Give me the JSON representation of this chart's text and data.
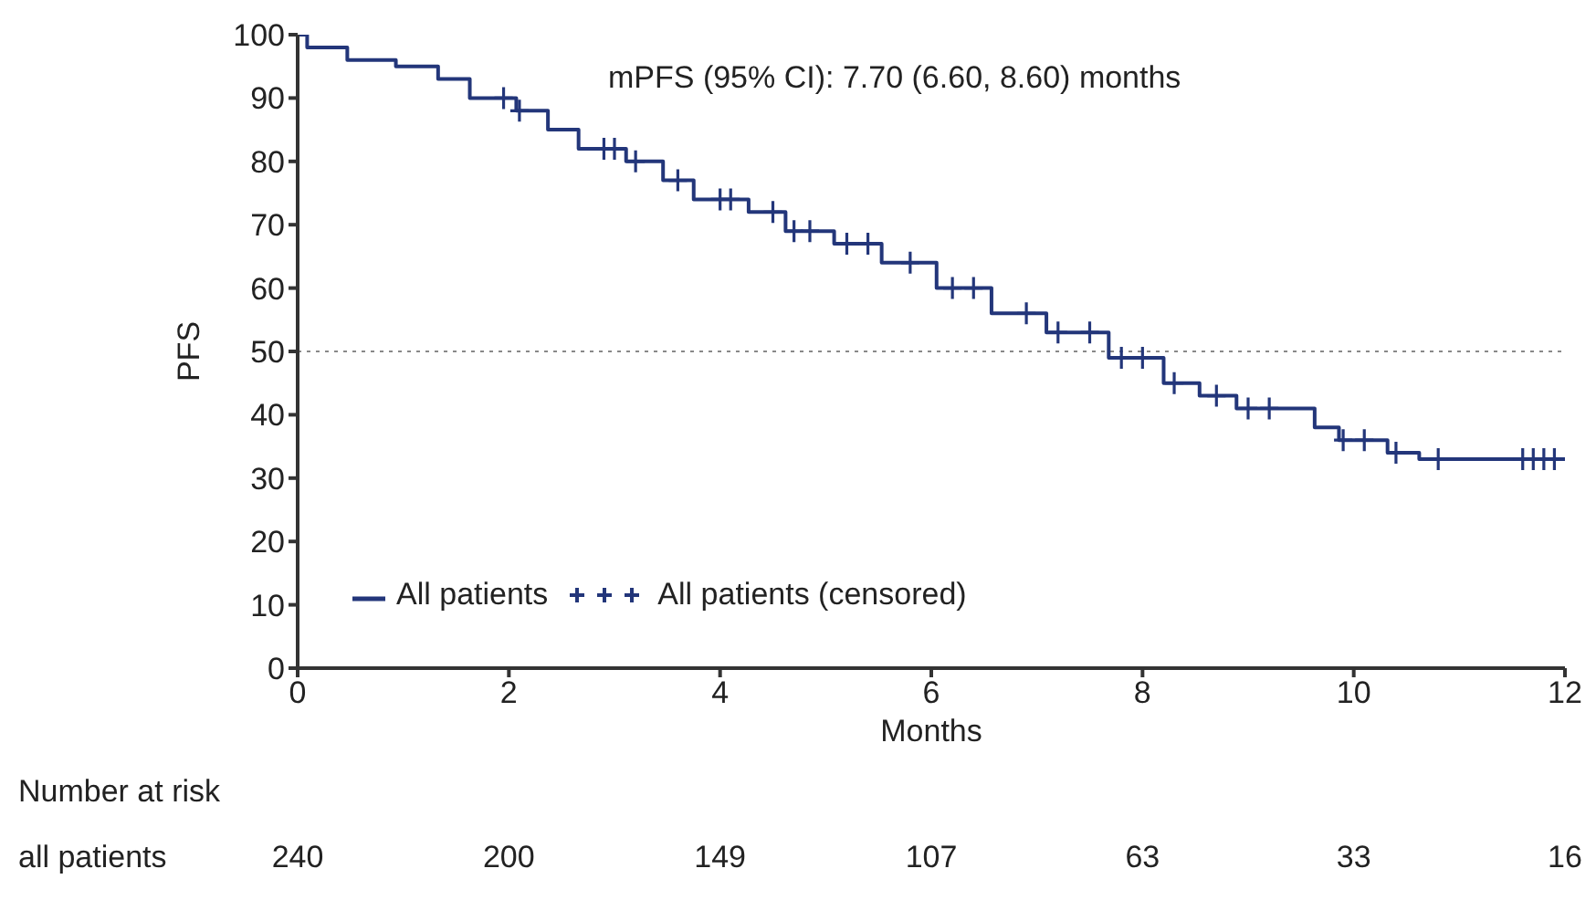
{
  "chart_data": {
    "type": "step",
    "xlabel": "Months",
    "ylabel": "PFS",
    "xlim": [
      0,
      12
    ],
    "xticks": [
      0,
      2,
      4,
      6,
      8,
      10,
      12
    ],
    "ylim": [
      0,
      100
    ],
    "yticks": [
      0,
      10,
      20,
      30,
      40,
      50,
      60,
      70,
      80,
      90,
      100
    ],
    "grid": false,
    "legend": "bottom left",
    "series": [
      {
        "name": "All patients",
        "color": "#23367a",
        "x": [
          0,
          0.09,
          0.47,
          0.93,
          1.33,
          1.63,
          2.07,
          2.37,
          2.66,
          3.11,
          3.46,
          3.75,
          4.27,
          4.62,
          5.08,
          5.53,
          6.05,
          6.57,
          7.09,
          7.68,
          8.2,
          8.54,
          8.89,
          9.63,
          9.86,
          10.32,
          10.62,
          12
        ],
        "values": [
          100,
          98,
          96,
          95,
          93,
          90,
          88,
          85,
          82,
          80,
          77,
          74,
          72,
          69,
          67,
          64,
          60,
          56,
          53,
          49,
          45,
          43,
          41,
          38,
          36,
          34,
          33,
          33
        ]
      },
      {
        "name": "All patients (censored)",
        "type": "scatter",
        "marker": "cross",
        "color": "#23367a",
        "x": [
          1.95,
          2.1,
          2.9,
          3.0,
          3.2,
          3.6,
          4.0,
          4.1,
          4.5,
          4.7,
          4.85,
          5.2,
          5.4,
          5.8,
          6.2,
          6.4,
          6.9,
          7.2,
          7.5,
          7.8,
          8.0,
          8.3,
          8.7,
          9.0,
          9.2,
          9.9,
          10.1,
          10.4,
          10.8,
          11.6,
          11.7,
          11.8,
          11.9
        ],
        "values": [
          90,
          88,
          82,
          82,
          80,
          77,
          74,
          74,
          72,
          69,
          69,
          67,
          67,
          64,
          60,
          60,
          56,
          53,
          53,
          49,
          49,
          45,
          43,
          41,
          41,
          36,
          36,
          34,
          33,
          33,
          33,
          33,
          33
        ]
      }
    ],
    "ref_lines": [
      {
        "axis": "y",
        "value": 50,
        "line_style": "dotted",
        "color": "#888888"
      }
    ],
    "annotations": [
      "mPFS (95% CI): 7.70 (6.60, 8.60) months",
      "Number at risk",
      "all patients",
      "240",
      "200",
      "149",
      "107",
      "63",
      "33",
      "16"
    ]
  }
}
